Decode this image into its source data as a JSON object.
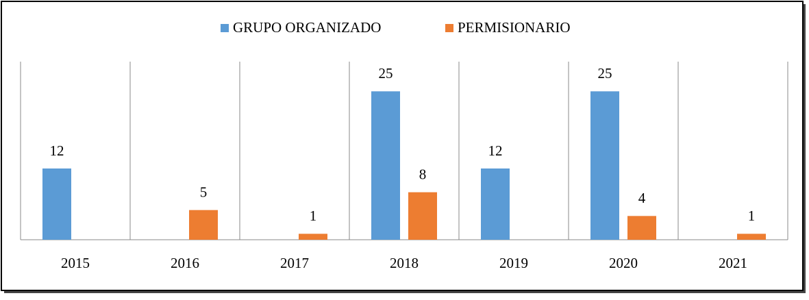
{
  "chart_data": {
    "type": "bar",
    "categories": [
      "2015",
      "2016",
      "2017",
      "2018",
      "2019",
      "2020",
      "2021"
    ],
    "series": [
      {
        "name": "GRUPO ORGANIZADO",
        "color": "#5b9bd5",
        "values": [
          12,
          null,
          null,
          25,
          12,
          25,
          null
        ]
      },
      {
        "name": "PERMISIONARIO",
        "color": "#ed7d31",
        "values": [
          null,
          5,
          1,
          8,
          null,
          4,
          1
        ]
      }
    ],
    "ylim": [
      0,
      30
    ],
    "legend": "top"
  }
}
